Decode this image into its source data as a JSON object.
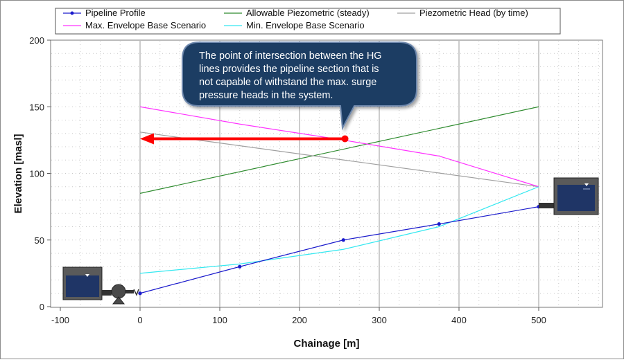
{
  "chart_data": {
    "type": "line",
    "xlabel": "Chainage [m]",
    "ylabel": "Elevation [masl]",
    "xlim": [
      -100,
      500
    ],
    "ylim": [
      0,
      200
    ],
    "x_ticks": [
      -100,
      0,
      100,
      200,
      300,
      400,
      500
    ],
    "y_ticks": [
      0,
      50,
      100,
      150,
      200
    ],
    "grid": "dotted, with solid vertical lines every 100 m",
    "legend_position": "top",
    "series": [
      {
        "name": "Pipeline Profile",
        "color": "#1a1acc",
        "markers": true,
        "points": [
          [
            0,
            10
          ],
          [
            125,
            30
          ],
          [
            255,
            50
          ],
          [
            375,
            62
          ],
          [
            500,
            75
          ]
        ]
      },
      {
        "name": "Allowable Piezometric (steady)",
        "color": "#2e8b2e",
        "points": [
          [
            0,
            85
          ],
          [
            500,
            150
          ]
        ]
      },
      {
        "name": "Piezometric Head (by time)",
        "color": "#a0a0a0",
        "points": [
          [
            0,
            131
          ],
          [
            500,
            90
          ]
        ]
      },
      {
        "name": "Max.  Envelope Base Scenario",
        "color": "#ff33ff",
        "points": [
          [
            0,
            150
          ],
          [
            125,
            137
          ],
          [
            255,
            125
          ],
          [
            375,
            113
          ],
          [
            500,
            90
          ]
        ]
      },
      {
        "name": "Min.  Envelope Base Scenario",
        "color": "#33e8f0",
        "points": [
          [
            0,
            25
          ],
          [
            125,
            32
          ],
          [
            255,
            43
          ],
          [
            375,
            60
          ],
          [
            500,
            90
          ]
        ]
      }
    ],
    "annotation": {
      "text_lines": [
        "The point of intersection between the HG",
        "lines provides the pipeline section that is",
        "not capable of withstand the max. surge",
        "pressure heads in the system."
      ],
      "point": [
        257,
        126
      ],
      "arrow_to": [
        0,
        126
      ],
      "arrow_color": "#ff0000",
      "callout_fill": "#1f3d64"
    }
  }
}
